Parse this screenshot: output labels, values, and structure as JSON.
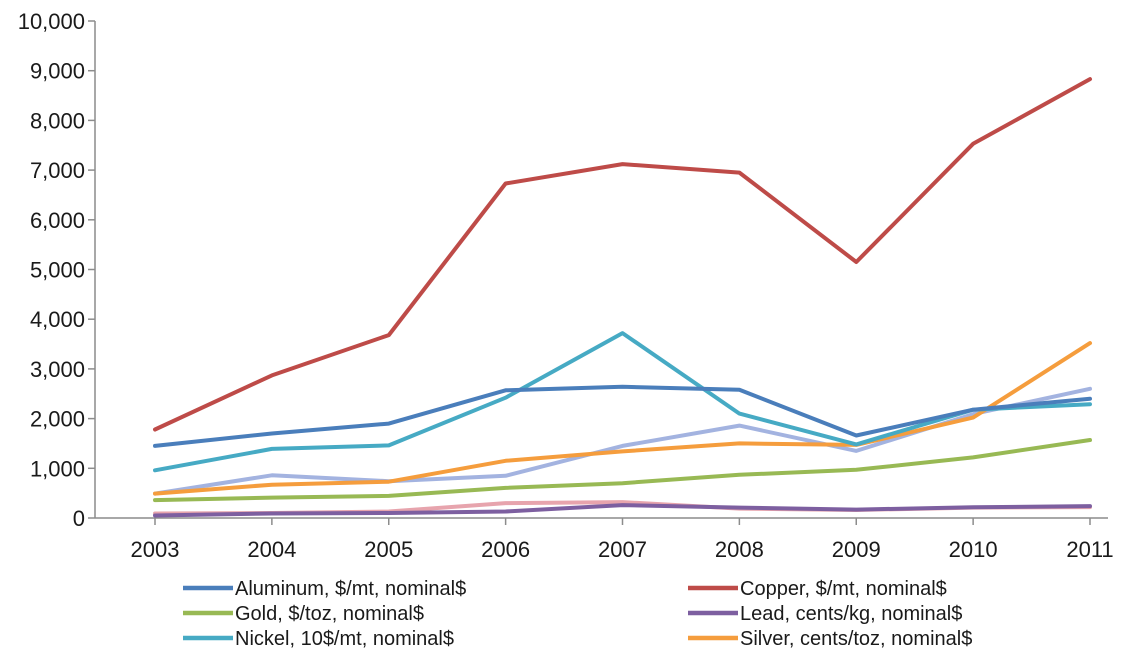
{
  "chart_data": {
    "type": "line",
    "title": "",
    "xlabel": "",
    "ylabel": "",
    "x": [
      "2003",
      "2004",
      "2005",
      "2006",
      "2007",
      "2008",
      "2009",
      "2010",
      "2011"
    ],
    "ylim": [
      0,
      10000
    ],
    "yticks": [
      0,
      1000,
      2000,
      3000,
      4000,
      5000,
      6000,
      7000,
      8000,
      9000,
      10000
    ],
    "ytick_labels": [
      "0",
      "1,000",
      "2,000",
      "3,000",
      "4,000",
      "5,000",
      "6,000",
      "7,000",
      "8,000",
      "9,000",
      "10,000"
    ],
    "grid": false,
    "legend_position": "bottom",
    "series": [
      {
        "name": "Aluminum, $/mt, nominal$",
        "color": "#4a7ebb",
        "values": [
          1450,
          1700,
          1900,
          2570,
          2640,
          2580,
          1660,
          2180,
          2400
        ],
        "in_legend": true
      },
      {
        "name": "Copper, $/mt, nominal$",
        "color": "#be4b48",
        "values": [
          1780,
          2870,
          3680,
          6730,
          7120,
          6950,
          5150,
          7530,
          8830
        ],
        "in_legend": true
      },
      {
        "name": "Gold, $/toz, nominal$",
        "color": "#98b954",
        "values": [
          360,
          410,
          445,
          605,
          700,
          870,
          970,
          1220,
          1570
        ],
        "in_legend": true
      },
      {
        "name": "Lead, cents/kg, nominal$",
        "color": "#7d5fa0",
        "values": [
          50,
          90,
          100,
          130,
          260,
          210,
          170,
          215,
          240
        ],
        "in_legend": true
      },
      {
        "name": "Nickel, 10$/mt, nominal$",
        "color": "#46aac4",
        "values": [
          960,
          1390,
          1460,
          2420,
          3720,
          2100,
          1480,
          2180,
          2290
        ],
        "in_legend": true
      },
      {
        "name": "Silver, cents/toz, nominal$",
        "color": "#f59d3d",
        "values": [
          490,
          670,
          730,
          1150,
          1340,
          1500,
          1470,
          2020,
          3520
        ],
        "in_legend": true
      },
      {
        "name": "",
        "color": "#a3b3e0",
        "values": [
          490,
          860,
          740,
          850,
          1450,
          1860,
          1350,
          2090,
          2600
        ],
        "in_legend": false
      },
      {
        "name": "",
        "color": "#e7a4ad",
        "values": [
          90,
          100,
          130,
          300,
          320,
          190,
          160,
          210,
          220
        ],
        "in_legend": false
      }
    ]
  }
}
